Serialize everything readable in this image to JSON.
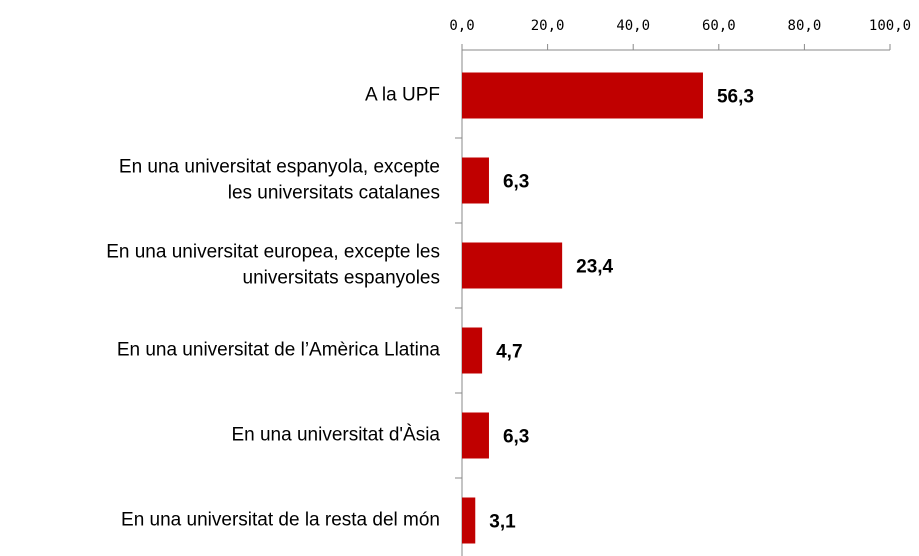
{
  "chart_data": {
    "type": "bar",
    "orientation": "horizontal",
    "categories": [
      "A la UPF",
      "En una universitat espanyola, excepte\nles universitats catalanes",
      "En una universitat europea, excepte les\nuniversitats espanyoles",
      "En una universitat de l’Amèrica Llatina",
      "En una universitat d'Àsia",
      "En una universitat de la resta del món"
    ],
    "values": [
      56.3,
      6.3,
      23.4,
      4.7,
      6.3,
      3.1
    ],
    "value_labels": [
      "56,3",
      "6,3",
      "23,4",
      "4,7",
      "6,3",
      "3,1"
    ],
    "color": "#c00000",
    "xlim": [
      0,
      100
    ],
    "xticks": [
      {
        "value": 0,
        "label": "0,0"
      },
      {
        "value": 20,
        "label": "20,0"
      },
      {
        "value": 40,
        "label": "40,0"
      },
      {
        "value": 60,
        "label": "60,0"
      },
      {
        "value": 80,
        "label": "80,0"
      },
      {
        "value": 100,
        "label": "100,0"
      }
    ]
  }
}
